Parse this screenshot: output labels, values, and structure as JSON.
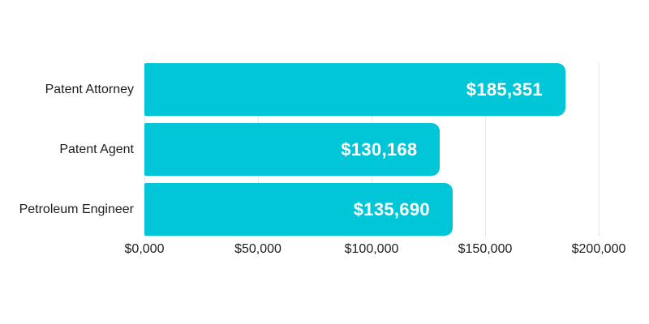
{
  "chart_data": {
    "type": "bar",
    "orientation": "horizontal",
    "title": "",
    "xlabel": "",
    "ylabel": "",
    "categories": [
      "Patent Attorney",
      "Patent Agent",
      "Petroleum Engineer"
    ],
    "values": [
      185351,
      130168,
      135690
    ],
    "value_labels": [
      "$185,351",
      "$130,168",
      "$135,690"
    ],
    "x_ticks": [
      "$0,000",
      "$50,000",
      "$100,000",
      "$150,000",
      "$200,000"
    ],
    "x_tick_values": [
      0,
      50000,
      100000,
      150000,
      200000
    ],
    "xlim": [
      0,
      200000
    ],
    "grid": "vertical-only",
    "legend": "none",
    "bar_color": "#00C6D8",
    "value_label_color": "#FFFFFF",
    "label_color": "#1E1E1E",
    "grid_color": "#E7E7E7",
    "background": "#FFFFFF"
  }
}
